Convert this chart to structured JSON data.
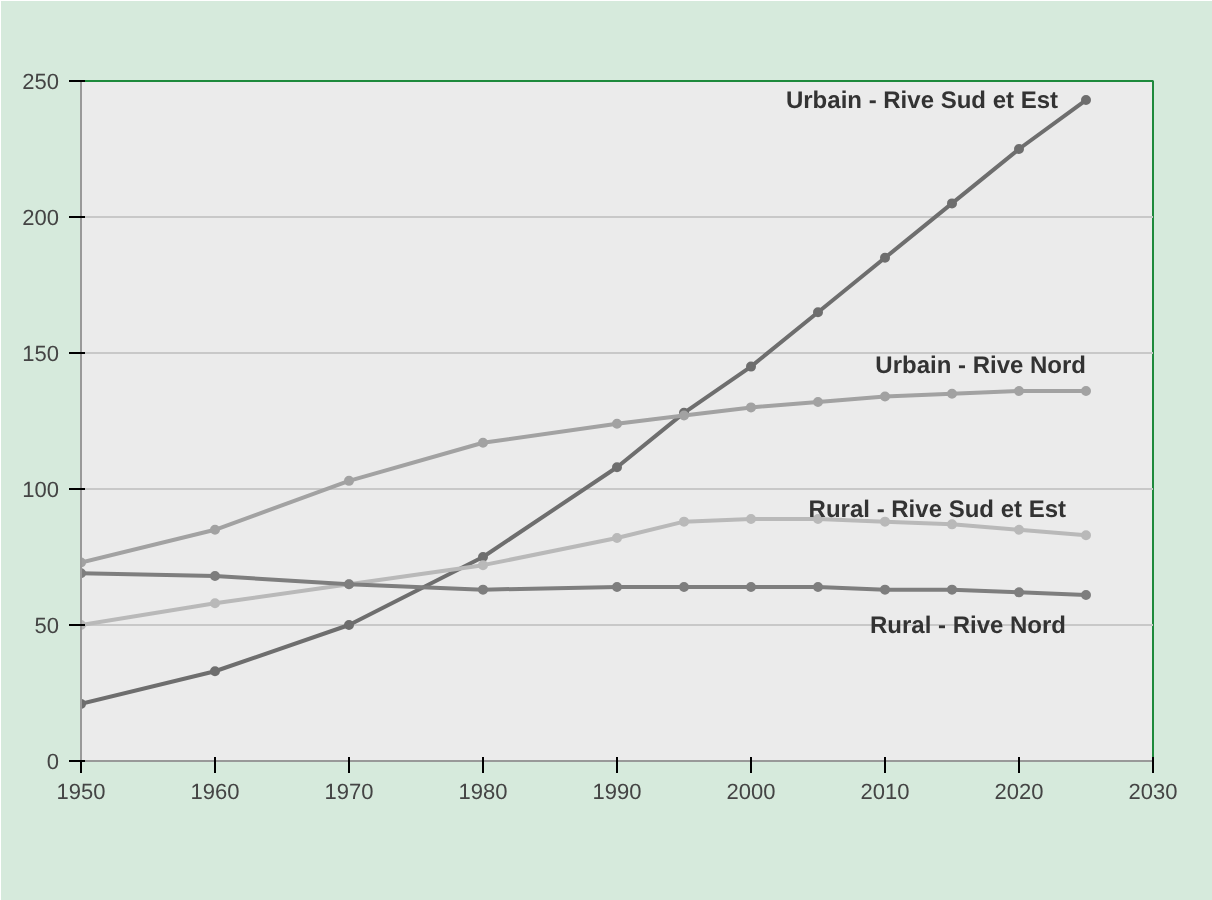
{
  "chart_data": {
    "type": "line",
    "x": [
      1950,
      1960,
      1970,
      1980,
      1990,
      1995,
      2000,
      2005,
      2010,
      2015,
      2020,
      2025
    ],
    "series": [
      {
        "name": "Urbain - Rive Sud et Est",
        "color": "#6e6e6e",
        "values": [
          21,
          33,
          50,
          75,
          108,
          128,
          145,
          165,
          185,
          205,
          225,
          243
        ]
      },
      {
        "name": "Urbain - Rive Nord",
        "color": "#a2a2a2",
        "values": [
          73,
          85,
          103,
          117,
          124,
          127,
          130,
          132,
          134,
          135,
          136,
          136
        ]
      },
      {
        "name": "Rural - Rive Sud et Est",
        "color": "#b9b9b9",
        "values": [
          50,
          58,
          65,
          72,
          82,
          88,
          89,
          89,
          88,
          87,
          85,
          83
        ]
      },
      {
        "name": "Rural - Rive Nord",
        "color": "#7e7e7e",
        "values": [
          69,
          68,
          65,
          63,
          64,
          64,
          64,
          64,
          63,
          63,
          62,
          61
        ]
      }
    ],
    "xlim": [
      1950,
      2030
    ],
    "xticks": [
      1950,
      1960,
      1970,
      1980,
      1990,
      2000,
      2010,
      2020,
      2030
    ],
    "ylim": [
      0,
      250
    ],
    "yticks": [
      0,
      50,
      100,
      150,
      200,
      250
    ],
    "grid": "y",
    "marker": "circle",
    "line_style": "solid"
  }
}
